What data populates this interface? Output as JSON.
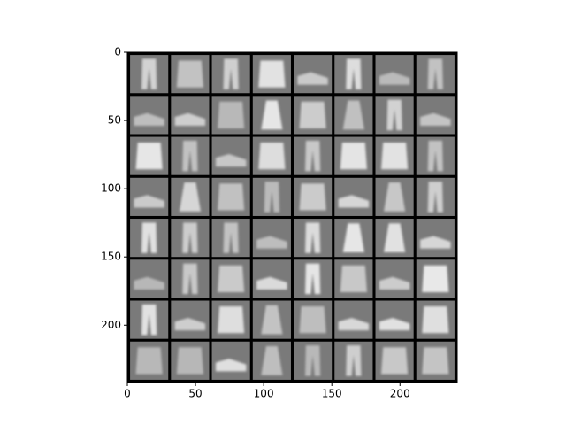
{
  "chart_data": {
    "type": "image",
    "xlim": [
      0,
      242
    ],
    "ylim": [
      242,
      0
    ],
    "xticks": [
      0,
      50,
      100,
      150,
      200
    ],
    "yticks": [
      0,
      50,
      100,
      150,
      200
    ]
  }
}
